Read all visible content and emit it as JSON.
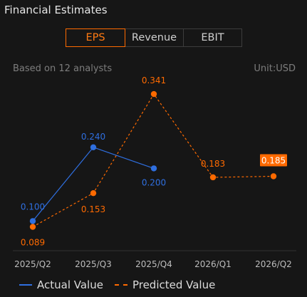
{
  "header": {
    "title": "Financial Estimates"
  },
  "tabs": [
    {
      "label": "EPS",
      "active": true
    },
    {
      "label": "Revenue",
      "active": false
    },
    {
      "label": "EBIT",
      "active": false
    }
  ],
  "subheader": {
    "analysts": "Based on 12 analysts",
    "unit": "Unit:USD"
  },
  "colors": {
    "actual": "#2f6fe0",
    "predicted": "#ff6a00",
    "accent": "#ff6a00"
  },
  "chart_data": {
    "type": "line",
    "categories": [
      "2025/Q2",
      "2025/Q3",
      "2025/Q4",
      "2026/Q1",
      "2026/Q2"
    ],
    "series": [
      {
        "name": "Actual Value",
        "values": [
          0.1,
          0.24,
          0.2,
          null,
          null
        ],
        "labels": [
          "0.100",
          "0.240",
          "0.200",
          null,
          null
        ],
        "style": "solid"
      },
      {
        "name": "Predicted Value",
        "values": [
          0.089,
          0.153,
          0.341,
          0.183,
          0.185
        ],
        "labels": [
          "0.089",
          "0.153",
          "0.341",
          "0.183",
          "0.185"
        ],
        "style": "dashed"
      }
    ],
    "highlighted_label": {
      "series": 1,
      "index": 4
    },
    "ylim": [
      0.06,
      0.36
    ],
    "grid": false,
    "legend_position": "bottom-left"
  },
  "legend": {
    "actual_label": "Actual Value",
    "predicted_label": "Predicted Value"
  }
}
